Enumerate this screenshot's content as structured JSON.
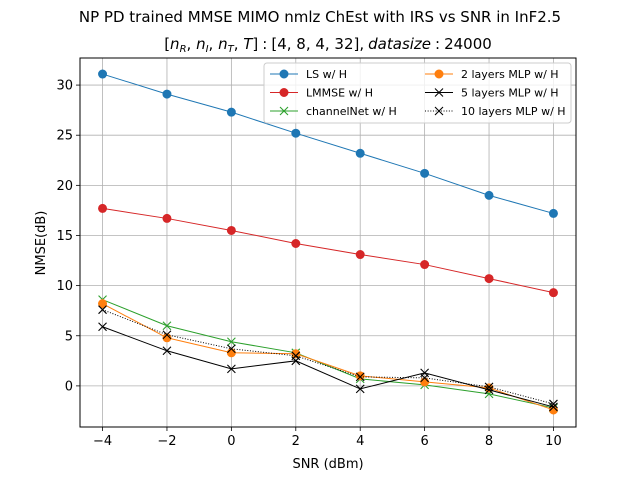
{
  "chart_data": {
    "type": "line",
    "title": "NP PD trained MMSE MIMO nmlz ChEst with IRS vs SNR in InF2.5",
    "subtitle": "[n_R, n_I, n_T, T] : [4, 8, 4, 32], datasize : 24000",
    "subtitle_parts": {
      "bracket_open": "[",
      "nR": "n",
      "nR_sub": "R",
      "nI": "n",
      "nI_sub": "I",
      "nT": "n",
      "nT_sub": "T",
      "T": "T",
      "bracket_close": "]",
      "colon1": ":",
      "values": "[4, 8, 4, 32],",
      "datasize": "datasize",
      "colon2": ":",
      "size": "24000"
    },
    "xlabel": "SNR (dBm)",
    "ylabel": "NMSE(dB)",
    "xlim": [
      -4.7,
      10.7
    ],
    "ylim": [
      -4.1,
      32.7
    ],
    "xticks": [
      -4,
      -2,
      0,
      2,
      4,
      6,
      8,
      10
    ],
    "xtick_labels": [
      "−4",
      "−2",
      "0",
      "2",
      "4",
      "6",
      "8",
      "10"
    ],
    "yticks": [
      0,
      5,
      10,
      15,
      20,
      25,
      30
    ],
    "ytick_labels": [
      "0",
      "5",
      "10",
      "15",
      "20",
      "25",
      "30"
    ],
    "grid": true,
    "legend_position": "upper right",
    "x": [
      -4,
      -2,
      0,
      2,
      4,
      6,
      8,
      10
    ],
    "series": [
      {
        "name": "LS w/ H",
        "color": "#1f77b4",
        "marker": "circle",
        "linestyle": "solid",
        "values": [
          31.1,
          29.1,
          27.3,
          25.2,
          23.2,
          21.2,
          19.0,
          17.2
        ]
      },
      {
        "name": "LMMSE w/ H",
        "color": "#d62728",
        "marker": "circle",
        "linestyle": "solid",
        "values": [
          17.7,
          16.7,
          15.5,
          14.2,
          13.1,
          12.1,
          10.7,
          9.3
        ]
      },
      {
        "name": "channelNet w/ H",
        "color": "#2ca02c",
        "marker": "x",
        "linestyle": "solid",
        "values": [
          8.6,
          6.0,
          4.4,
          3.3,
          0.7,
          0.1,
          -0.8,
          -2.2
        ]
      },
      {
        "name": "2 layers MLP w/ H",
        "color": "#ff7f0e",
        "marker": "circle",
        "linestyle": "solid",
        "values": [
          8.2,
          4.8,
          3.3,
          3.2,
          1.0,
          0.4,
          -0.2,
          -2.4
        ]
      },
      {
        "name": "5 layers MLP w/ H",
        "color": "#000000",
        "marker": "x",
        "linestyle": "solid",
        "values": [
          5.9,
          3.5,
          1.7,
          2.5,
          -0.3,
          1.3,
          -0.4,
          -2.1
        ]
      },
      {
        "name": "10 layers MLP w/ H",
        "color": "#000000",
        "marker": "x",
        "linestyle": "dotted",
        "values": [
          7.6,
          5.1,
          3.7,
          3.0,
          0.9,
          0.8,
          -0.1,
          -1.8
        ]
      }
    ]
  }
}
